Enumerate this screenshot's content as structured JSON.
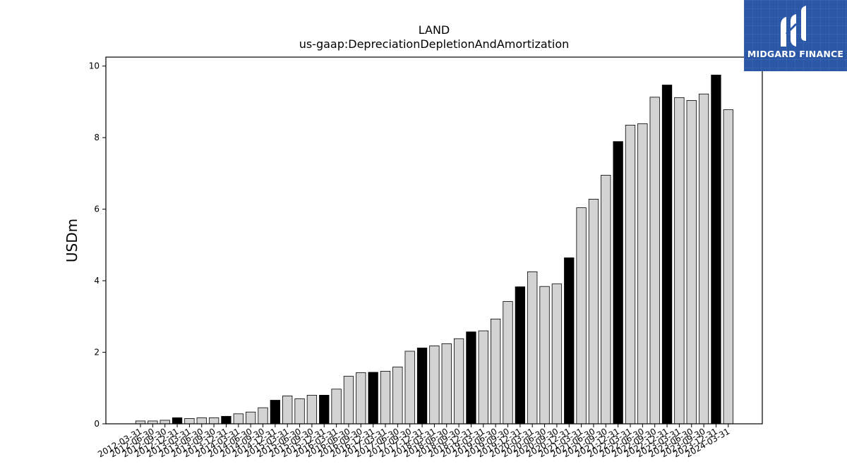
{
  "chart_data": {
    "type": "bar",
    "title": "LAND",
    "subtitle": "us-gaap:DepreciationDepletionAndAmortization",
    "xlabel": "",
    "ylabel": "USDm",
    "ylim": [
      0,
      10.25
    ],
    "yticks": [
      0,
      2,
      4,
      6,
      8,
      10
    ],
    "grid": false,
    "legend": "none",
    "colors": {
      "quarter": "#d3d3d3",
      "year_end": "#000000",
      "edge": "#000000"
    },
    "categories": [
      "2012-03-31",
      "2012-06-30",
      "2012-09-30",
      "2012-12-31",
      "2013-03-31",
      "2013-06-30",
      "2013-09-30",
      "2013-12-31",
      "2014-03-31",
      "2014-06-30",
      "2014-09-30",
      "2014-12-31",
      "2015-03-31",
      "2015-06-30",
      "2015-09-30",
      "2015-12-31",
      "2016-03-31",
      "2016-06-30",
      "2016-09-30",
      "2016-12-31",
      "2017-03-31",
      "2017-06-30",
      "2017-09-30",
      "2017-12-31",
      "2018-03-31",
      "2018-06-30",
      "2018-09-30",
      "2018-12-31",
      "2019-03-31",
      "2019-06-30",
      "2019-09-30",
      "2019-12-31",
      "2020-03-31",
      "2020-06-30",
      "2020-09-30",
      "2020-12-31",
      "2021-03-31",
      "2021-06-30",
      "2021-09-30",
      "2021-12-31",
      "2022-03-31",
      "2022-06-30",
      "2022-09-30",
      "2022-12-31",
      "2023-03-31",
      "2023-06-30",
      "2023-09-30",
      "2023-12-31",
      "2024-03-31"
    ],
    "values": [
      0.08,
      0.08,
      0.1,
      0.17,
      0.15,
      0.17,
      0.17,
      0.21,
      0.28,
      0.33,
      0.45,
      0.66,
      0.78,
      0.7,
      0.8,
      0.8,
      0.97,
      1.33,
      1.43,
      1.44,
      1.47,
      1.59,
      2.03,
      2.12,
      2.18,
      2.24,
      2.38,
      2.57,
      2.6,
      2.93,
      3.42,
      3.83,
      4.25,
      3.84,
      3.91,
      4.64,
      6.04,
      6.28,
      6.95,
      7.89,
      8.35,
      8.39,
      9.13,
      9.47,
      9.12,
      9.04,
      9.22,
      9.75,
      8.78
    ]
  },
  "logo": {
    "text": "MIDGARD FINANCE"
  }
}
